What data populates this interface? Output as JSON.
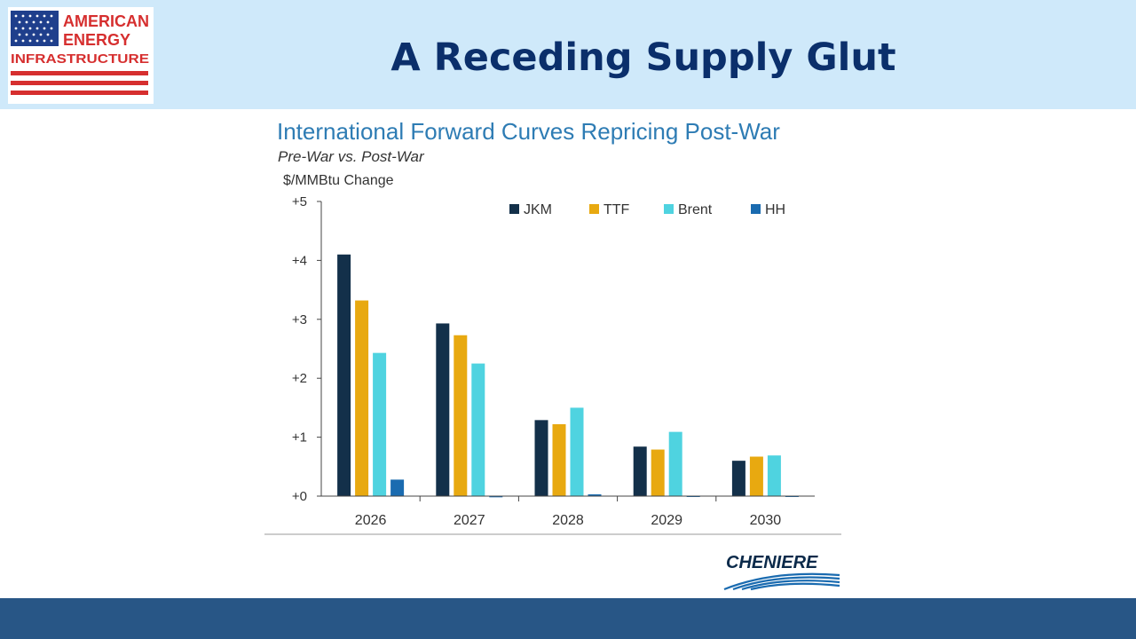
{
  "slide": {
    "title": "A Receding Supply Glut",
    "logo": {
      "line1": "AMERICAN",
      "line2": "ENERGY",
      "line3": "INFRASTRUCTURE",
      "colors": {
        "red": "#d62f2f",
        "blue": "#1f3f8c"
      }
    },
    "source_logo_text": "CHENIERE"
  },
  "chart_data": {
    "type": "bar",
    "title": "International Forward Curves Repricing Post-War",
    "subtitle": "Pre-War vs. Post-War",
    "ylabel": "$/MMBtu Change",
    "categories": [
      "2026",
      "2027",
      "2028",
      "2029",
      "2030"
    ],
    "ylim": [
      0,
      5
    ],
    "yticks": [
      "+0",
      "+1",
      "+2",
      "+3",
      "+4",
      "+5"
    ],
    "legend_position": "top-right",
    "series": [
      {
        "name": "JKM",
        "color": "#13304a",
        "values": [
          4.1,
          2.93,
          1.29,
          0.84,
          0.6
        ]
      },
      {
        "name": "TTF",
        "color": "#e8a910",
        "values": [
          3.32,
          2.73,
          1.22,
          0.79,
          0.67
        ]
      },
      {
        "name": "Brent",
        "color": "#4fd3e0",
        "values": [
          2.43,
          2.25,
          1.5,
          1.09,
          0.69
        ]
      },
      {
        "name": "HH",
        "color": "#1a6bb0",
        "values": [
          0.28,
          -0.02,
          0.03,
          0.0,
          0.0
        ]
      }
    ]
  }
}
